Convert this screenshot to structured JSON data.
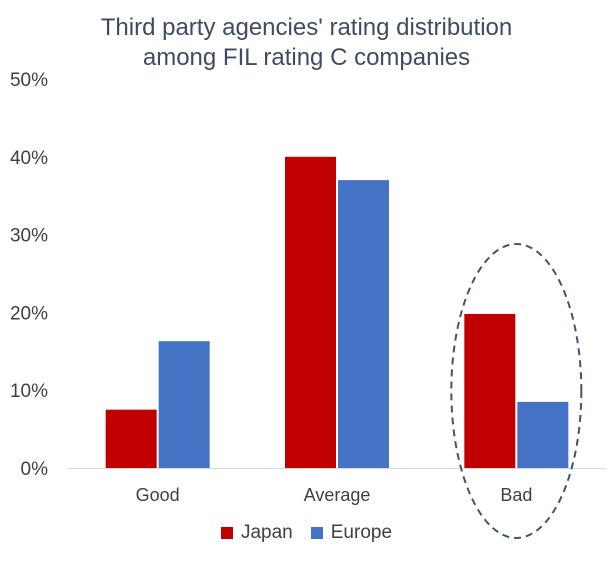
{
  "chart_data": {
    "type": "bar",
    "title_lines": [
      "Third party agencies' rating distribution",
      "among FIL rating C companies"
    ],
    "categories": [
      "Good",
      "Average",
      "Bad"
    ],
    "series": [
      {
        "name": "Japan",
        "color": "#c00000",
        "values": [
          7.5,
          40,
          19.8
        ]
      },
      {
        "name": "Europe",
        "color": "#4472c4",
        "values": [
          16.3,
          37,
          8.5
        ]
      }
    ],
    "ylim": [
      0,
      50
    ],
    "yticks": [
      "0%",
      "10%",
      "20%",
      "30%",
      "40%",
      "50%"
    ],
    "ytick_values": [
      0,
      10,
      20,
      30,
      40,
      50
    ],
    "grid": false,
    "legend_position": "bottom",
    "highlight": {
      "category": "Bad",
      "shape": "dashed-ellipse",
      "color": "#44546a"
    }
  }
}
